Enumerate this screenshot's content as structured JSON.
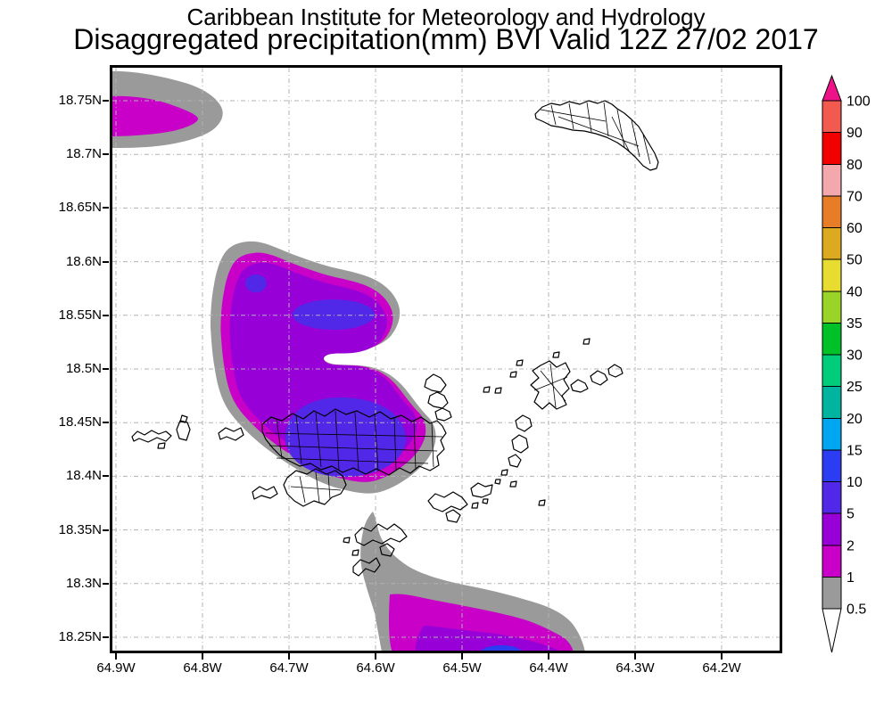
{
  "header": {
    "line1": "Caribbean Institute for Meteorology and Hydrology",
    "line2": "Disaggregated precipitation(mm) BVI Valid 12Z 27/02 2017"
  },
  "axes": {
    "lat_ticks": [
      "18.75N",
      "18.7N",
      "18.65N",
      "18.6N",
      "18.55N",
      "18.5N",
      "18.45N",
      "18.4N",
      "18.35N",
      "18.3N",
      "18.25N"
    ],
    "lon_ticks": [
      "64.9W",
      "64.8W",
      "64.7W",
      "64.6W",
      "64.5W",
      "64.4W",
      "64.3W",
      "64.2W"
    ]
  },
  "colorbar": {
    "boundary_labels_top_to_bottom": [
      "100",
      "90",
      "80",
      "70",
      "60",
      "50",
      "40",
      "35",
      "30",
      "25",
      "20",
      "15",
      "10",
      "5",
      "2",
      "1",
      "0.5"
    ],
    "segment_colors_bottom_to_top": [
      "#9a9a9a",
      "#c800c8",
      "#9800d8",
      "#5228e8",
      "#2b3cf2",
      "#00a6f0",
      "#00b4a0",
      "#00cc7a",
      "#00c228",
      "#9ad428",
      "#e8dc30",
      "#dcaa20",
      "#e87d28",
      "#f2a8ac",
      "#f20000",
      "#f25a50"
    ],
    "above_max_color": "#ee1289",
    "below_min_color": "#ffffff"
  },
  "chart_data": {
    "type": "heatmap",
    "subtype": "filled-contour precipitation map",
    "organization": "Caribbean Institute for Meteorology and Hydrology",
    "title": "Disaggregated precipitation(mm) BVI Valid 12Z 27/02 2017",
    "region": "BVI",
    "units": "mm",
    "valid_time": "12Z 27/02 2017",
    "x_axis": {
      "ticks": [
        "64.9W",
        "64.8W",
        "64.7W",
        "64.6W",
        "64.5W",
        "64.4W",
        "64.3W",
        "64.2W"
      ],
      "range": [
        "64.91W",
        "64.13W"
      ],
      "grid": "dashed"
    },
    "y_axis": {
      "ticks": [
        "18.25N",
        "18.3N",
        "18.35N",
        "18.4N",
        "18.45N",
        "18.5N",
        "18.55N",
        "18.6N",
        "18.65N",
        "18.7N",
        "18.75N"
      ],
      "range": [
        "18.23N",
        "18.78N"
      ],
      "grid": "dashed"
    },
    "contour_levels_mm": [
      0.5,
      1,
      2,
      5,
      10,
      15,
      20,
      25,
      30,
      35,
      40,
      50,
      60,
      70,
      80,
      90,
      100
    ],
    "level_colors": {
      "0.5-1": "#9a9a9a",
      "1-2": "#c800c8",
      "2-5": "#9800d8",
      "5-10": "#5228e8",
      "10-15": "#2b3cf2",
      "15-20": "#00a6f0",
      "20-25": "#00b4a0",
      "25-30": "#00cc7a",
      "30-35": "#00c228",
      "35-40": "#9ad428",
      "40-50": "#e8dc30",
      "50-60": "#dcaa20",
      "60-70": "#e87d28",
      "70-80": "#f2a8ac",
      "80-90": "#f20000",
      "90-100": "#f25a50",
      "above-100": "#ee1289",
      "below-0.5": "#ffffff"
    },
    "features": [
      {
        "name": "northwest-edge-band",
        "location": "west map edge, 18.71N-18.77N",
        "max_level_mm": "1-2"
      },
      {
        "name": "central-blob-over-tortola",
        "location": "64.76W-64.50W, 18.40N-18.60N",
        "max_level_mm": "5-10"
      },
      {
        "name": "southern-blob",
        "location": "64.63W-64.36W, south of 18.32N",
        "max_level_mm": "10-15"
      }
    ]
  }
}
